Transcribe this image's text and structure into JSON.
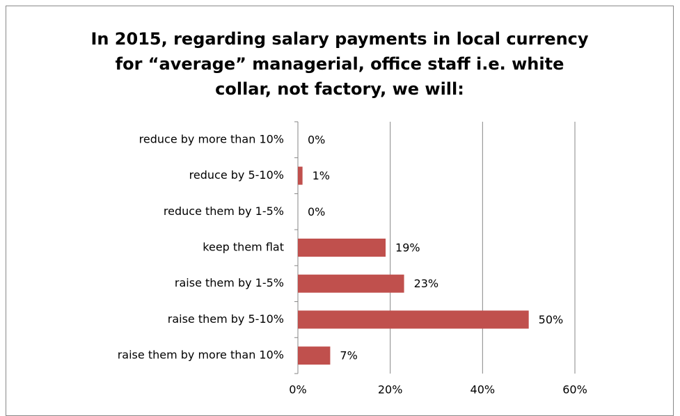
{
  "chart_data": {
    "type": "bar",
    "orientation": "horizontal",
    "title": "In 2015, regarding salary payments in local currency for “average” managerial, office staff i.e. white collar, not factory, we will:",
    "categories": [
      "reduce by more than 10%",
      "reduce by 5-10%",
      "reduce them by 1-5%",
      "keep them flat",
      "raise them by 1-5%",
      "raise them by 5-10%",
      "raise them by more than 10%"
    ],
    "values": [
      0,
      1,
      0,
      19,
      23,
      50,
      7
    ],
    "value_labels": [
      "0%",
      "1%",
      "0%",
      "19%",
      "23%",
      "50%",
      "7%"
    ],
    "color": "#c0504d",
    "xlim": [
      0,
      60
    ],
    "xticks": [
      {
        "value": 0,
        "label": "0%"
      },
      {
        "value": 20,
        "label": "20%"
      },
      {
        "value": 40,
        "label": "40%"
      },
      {
        "value": 60,
        "label": "60%"
      }
    ],
    "grid": true
  }
}
